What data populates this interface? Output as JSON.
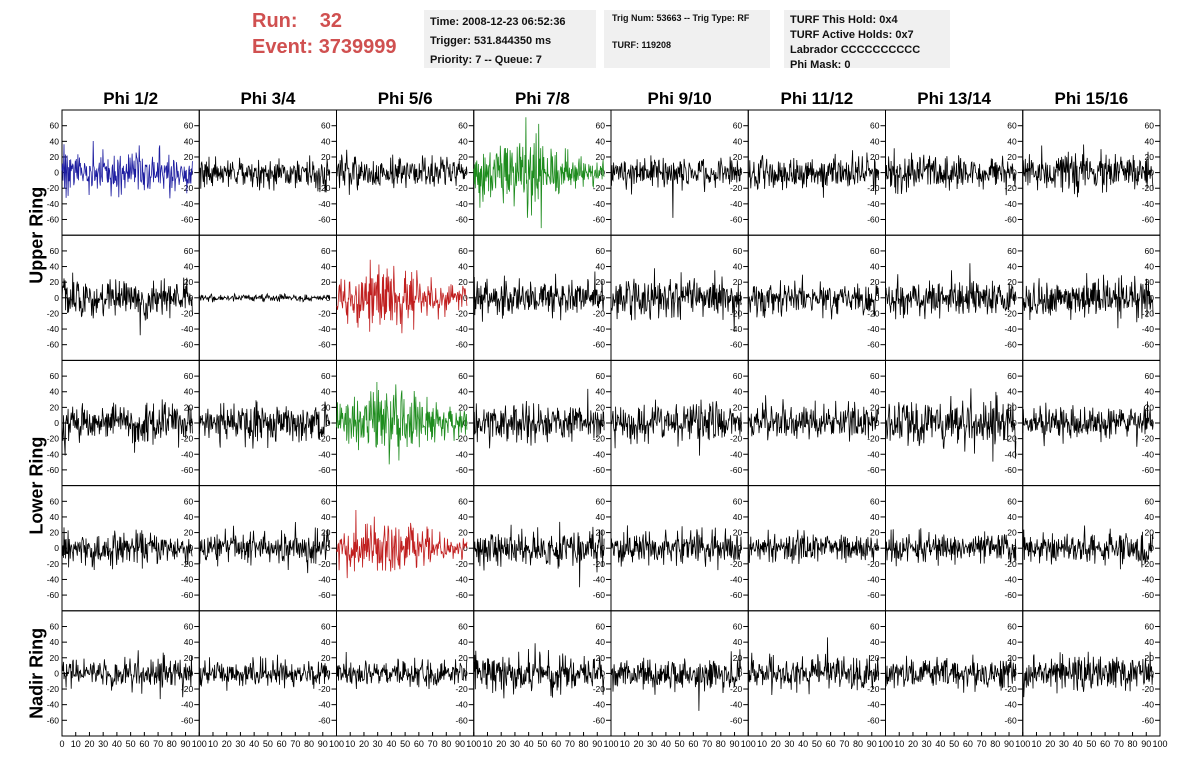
{
  "header": {
    "run_label": "Run:",
    "run_value": "32",
    "event_label": "Event:",
    "event_value": "3739999"
  },
  "info_time": {
    "time": "Time: 2008-12-23 06:52:36",
    "trigger": "Trigger: 531.844350 ms",
    "priority": "Priority: 7 -- Queue: 7"
  },
  "info_trig": {
    "trig": "Trig Num: 53663 -- Trig Type: RF",
    "turf": "TURF: 119208"
  },
  "info_turf": {
    "hold": "TURF This Hold: 0x4",
    "active": "TURF Active Holds: 0x7",
    "labrador": "Labrador CCCCCCCCCC",
    "phimask": "Phi Mask: 0"
  },
  "colors": {
    "blue": "#1c1ca0",
    "green": "#1e8c1e",
    "red": "#c01e1e",
    "black": "#000000",
    "header_red": "#d05050",
    "panel_bg": "#f0f0f0"
  },
  "chart_data": {
    "type": "line",
    "columns": [
      "Phi 1/2",
      "Phi 3/4",
      "Phi 5/6",
      "Phi 7/8",
      "Phi 9/10",
      "Phi 11/12",
      "Phi 13/14",
      "Phi 15/16"
    ],
    "row_groups": [
      {
        "label": "Upper Ring",
        "rows": 2
      },
      {
        "label": "Lower Ring",
        "rows": 2
      },
      {
        "label": "Nadir Ring",
        "rows": 1
      }
    ],
    "ylim": [
      -75,
      75
    ],
    "yticks": [
      -60,
      -40,
      -20,
      0,
      20,
      40,
      60
    ],
    "xlim": [
      0,
      100
    ],
    "xtick_labels": [
      "0",
      "10",
      "20",
      "30",
      "40",
      "50",
      "60",
      "70",
      "80",
      "90",
      "100"
    ],
    "x_samples": 256,
    "x_span": [
      0,
      95
    ],
    "amplitude_unit": "arbitrary",
    "cells": [
      [
        {
          "color": "blue",
          "amp": 16,
          "seed": 11
        },
        {
          "color": "black",
          "amp": 11,
          "seed": 12
        },
        {
          "color": "black",
          "amp": 12,
          "seed": 13
        },
        {
          "color": "green",
          "amp": 22,
          "seed": 14
        },
        {
          "color": "black",
          "amp": 11,
          "seed": 15,
          "spike": [
            45,
            -58
          ]
        },
        {
          "color": "black",
          "amp": 12,
          "seed": 16
        },
        {
          "color": "black",
          "amp": 13,
          "seed": 17
        },
        {
          "color": "black",
          "amp": 14,
          "seed": 18
        }
      ],
      [
        {
          "color": "black",
          "amp": 15,
          "seed": 21,
          "spike": [
            57,
            -48
          ]
        },
        {
          "color": "black",
          "amp": 2.5,
          "seed": 22
        },
        {
          "color": "red",
          "amp": 20,
          "seed": 23
        },
        {
          "color": "black",
          "amp": 15,
          "seed": 24
        },
        {
          "color": "black",
          "amp": 15,
          "seed": 25
        },
        {
          "color": "black",
          "amp": 13,
          "seed": 26
        },
        {
          "color": "black",
          "amp": 13,
          "seed": 27
        },
        {
          "color": "black",
          "amp": 15,
          "seed": 28
        }
      ],
      [
        {
          "color": "black",
          "amp": 14,
          "seed": 31
        },
        {
          "color": "black",
          "amp": 13,
          "seed": 32
        },
        {
          "color": "green",
          "amp": 22,
          "seed": 33
        },
        {
          "color": "black",
          "amp": 14,
          "seed": 34
        },
        {
          "color": "black",
          "amp": 14,
          "seed": 35
        },
        {
          "color": "black",
          "amp": 13,
          "seed": 36
        },
        {
          "color": "black",
          "amp": 18,
          "seed": 37
        },
        {
          "color": "black",
          "amp": 12,
          "seed": 38
        }
      ],
      [
        {
          "color": "black",
          "amp": 12,
          "seed": 41
        },
        {
          "color": "black",
          "amp": 12,
          "seed": 42
        },
        {
          "color": "red",
          "amp": 18,
          "seed": 43
        },
        {
          "color": "black",
          "amp": 14,
          "seed": 44,
          "spike": [
            77,
            -50
          ]
        },
        {
          "color": "black",
          "amp": 13,
          "seed": 45
        },
        {
          "color": "black",
          "amp": 11,
          "seed": 46
        },
        {
          "color": "black",
          "amp": 11,
          "seed": 47
        },
        {
          "color": "black",
          "amp": 12,
          "seed": 48
        }
      ],
      [
        {
          "color": "black",
          "amp": 12,
          "seed": 51
        },
        {
          "color": "black",
          "amp": 10,
          "seed": 52
        },
        {
          "color": "black",
          "amp": 10,
          "seed": 53
        },
        {
          "color": "black",
          "amp": 14,
          "seed": 54
        },
        {
          "color": "black",
          "amp": 12,
          "seed": 55,
          "spike": [
            64,
            -48
          ]
        },
        {
          "color": "black",
          "amp": 12,
          "seed": 56
        },
        {
          "color": "black",
          "amp": 12,
          "seed": 57
        },
        {
          "color": "black",
          "amp": 13,
          "seed": 58
        }
      ]
    ]
  }
}
